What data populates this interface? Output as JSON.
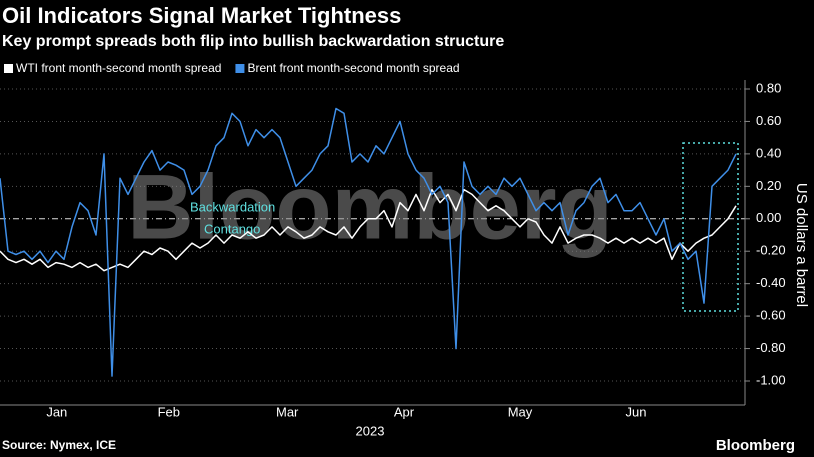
{
  "chart_data": {
    "type": "line",
    "title": "Oil Indicators Signal Market Tightness",
    "subtitle": "Key prompt spreads both flip into bullish backwardation structure",
    "ylabel": "US dollars a barrel",
    "xlabel": "2023",
    "source": "Source: Nymex, ICE",
    "brand": "Bloomberg",
    "watermark": "Bloomberg",
    "annotations": [
      "Backwardation",
      "Contango"
    ],
    "legend": "top-left",
    "grid": true,
    "x": [
      0,
      1,
      2,
      3,
      4,
      5,
      6,
      7,
      8,
      9,
      10,
      11,
      12,
      13,
      14,
      15,
      16,
      17,
      18,
      19,
      20,
      21,
      22,
      23,
      24,
      25,
      26,
      27,
      28,
      29,
      30,
      31,
      32,
      33,
      34,
      35,
      36,
      37,
      38,
      39,
      40,
      41,
      42,
      43,
      44,
      45,
      46,
      47,
      48,
      49,
      50,
      51,
      52,
      53,
      54,
      55,
      56,
      57,
      58,
      59,
      60,
      61,
      62,
      63,
      64,
      65,
      66,
      67,
      68,
      69,
      70,
      71,
      72,
      73,
      74,
      75,
      76,
      77,
      78,
      79,
      80,
      81,
      82,
      83,
      84,
      85,
      86,
      87,
      88,
      89,
      90,
      91,
      92
    ],
    "xlim": [
      0,
      92
    ],
    "xticks": [
      {
        "value": 7.1,
        "label": "Jan"
      },
      {
        "value": 21.1,
        "label": "Feb"
      },
      {
        "value": 35.9,
        "label": "Mar"
      },
      {
        "value": 50.5,
        "label": "Apr"
      },
      {
        "value": 65,
        "label": "May"
      },
      {
        "value": 79.5,
        "label": "Jun"
      }
    ],
    "ylim": [
      -1.15,
      0.85
    ],
    "yticks": [
      {
        "value": 0.8,
        "label": "0.80"
      },
      {
        "value": 0.6,
        "label": "0.60"
      },
      {
        "value": 0.4,
        "label": "0.40"
      },
      {
        "value": 0.2,
        "label": "0.20"
      },
      {
        "value": 0,
        "label": "0.00"
      },
      {
        "value": -0.2,
        "label": "-0.20"
      },
      {
        "value": -0.4,
        "label": "-0.40"
      },
      {
        "value": -0.6,
        "label": "-0.60"
      },
      {
        "value": -0.8,
        "label": "-0.80"
      },
      {
        "value": -1,
        "label": "-1.00"
      }
    ],
    "series": [
      {
        "name": "WTI front month-second month spread",
        "color": "#ffffff",
        "values": [
          -0.2,
          -0.25,
          -0.27,
          -0.25,
          -0.28,
          -0.25,
          -0.3,
          -0.27,
          -0.28,
          -0.3,
          -0.27,
          -0.3,
          -0.28,
          -0.32,
          -0.3,
          -0.28,
          -0.3,
          -0.25,
          -0.2,
          -0.22,
          -0.18,
          -0.2,
          -0.25,
          -0.2,
          -0.15,
          -0.18,
          -0.15,
          -0.1,
          -0.15,
          -0.1,
          -0.12,
          -0.08,
          -0.12,
          -0.1,
          -0.05,
          -0.1,
          -0.05,
          -0.08,
          -0.12,
          -0.1,
          -0.05,
          -0.08,
          -0.1,
          -0.05,
          -0.12,
          -0.05,
          0.0,
          0.0,
          0.05,
          -0.05,
          0.1,
          0.05,
          0.15,
          0.05,
          0.18,
          0.1,
          0.15,
          0.05,
          0.18,
          0.15,
          0.1,
          0.05,
          0.08,
          0.05,
          0.0,
          -0.05,
          0.0,
          -0.02,
          -0.1,
          -0.15,
          -0.05,
          -0.15,
          -0.12,
          -0.1,
          -0.1,
          -0.12,
          -0.15,
          -0.12,
          -0.15,
          -0.12,
          -0.15,
          -0.12,
          -0.15,
          -0.12,
          -0.25,
          -0.15,
          -0.2,
          -0.15,
          -0.12,
          -0.1,
          -0.05,
          0.0,
          0.08
        ]
      },
      {
        "name": "Brent front month-second month spread",
        "color": "#3f8fe8",
        "values": [
          0.25,
          -0.2,
          -0.22,
          -0.2,
          -0.25,
          -0.2,
          -0.27,
          -0.2,
          -0.25,
          -0.05,
          0.1,
          0.05,
          -0.1,
          0.4,
          -0.97,
          0.25,
          0.15,
          0.25,
          0.35,
          0.42,
          0.3,
          0.35,
          0.33,
          0.3,
          0.15,
          0.2,
          0.3,
          0.45,
          0.5,
          0.65,
          0.6,
          0.45,
          0.55,
          0.5,
          0.55,
          0.5,
          0.35,
          0.2,
          0.25,
          0.3,
          0.4,
          0.45,
          0.68,
          0.65,
          0.35,
          0.4,
          0.35,
          0.45,
          0.4,
          0.5,
          0.6,
          0.4,
          0.3,
          0.25,
          0.15,
          0.2,
          0.1,
          -0.8,
          0.35,
          0.2,
          0.15,
          0.2,
          0.15,
          0.25,
          0.2,
          0.25,
          0.15,
          0.05,
          0.1,
          0.05,
          0.1,
          -0.1,
          0.05,
          0.1,
          0.2,
          0.25,
          0.1,
          0.15,
          0.05,
          0.05,
          0.1,
          0.0,
          -0.1,
          0.0,
          -0.2,
          -0.15,
          -0.25,
          -0.2,
          -0.52,
          0.2,
          0.25,
          0.3,
          0.4
        ]
      }
    ]
  }
}
